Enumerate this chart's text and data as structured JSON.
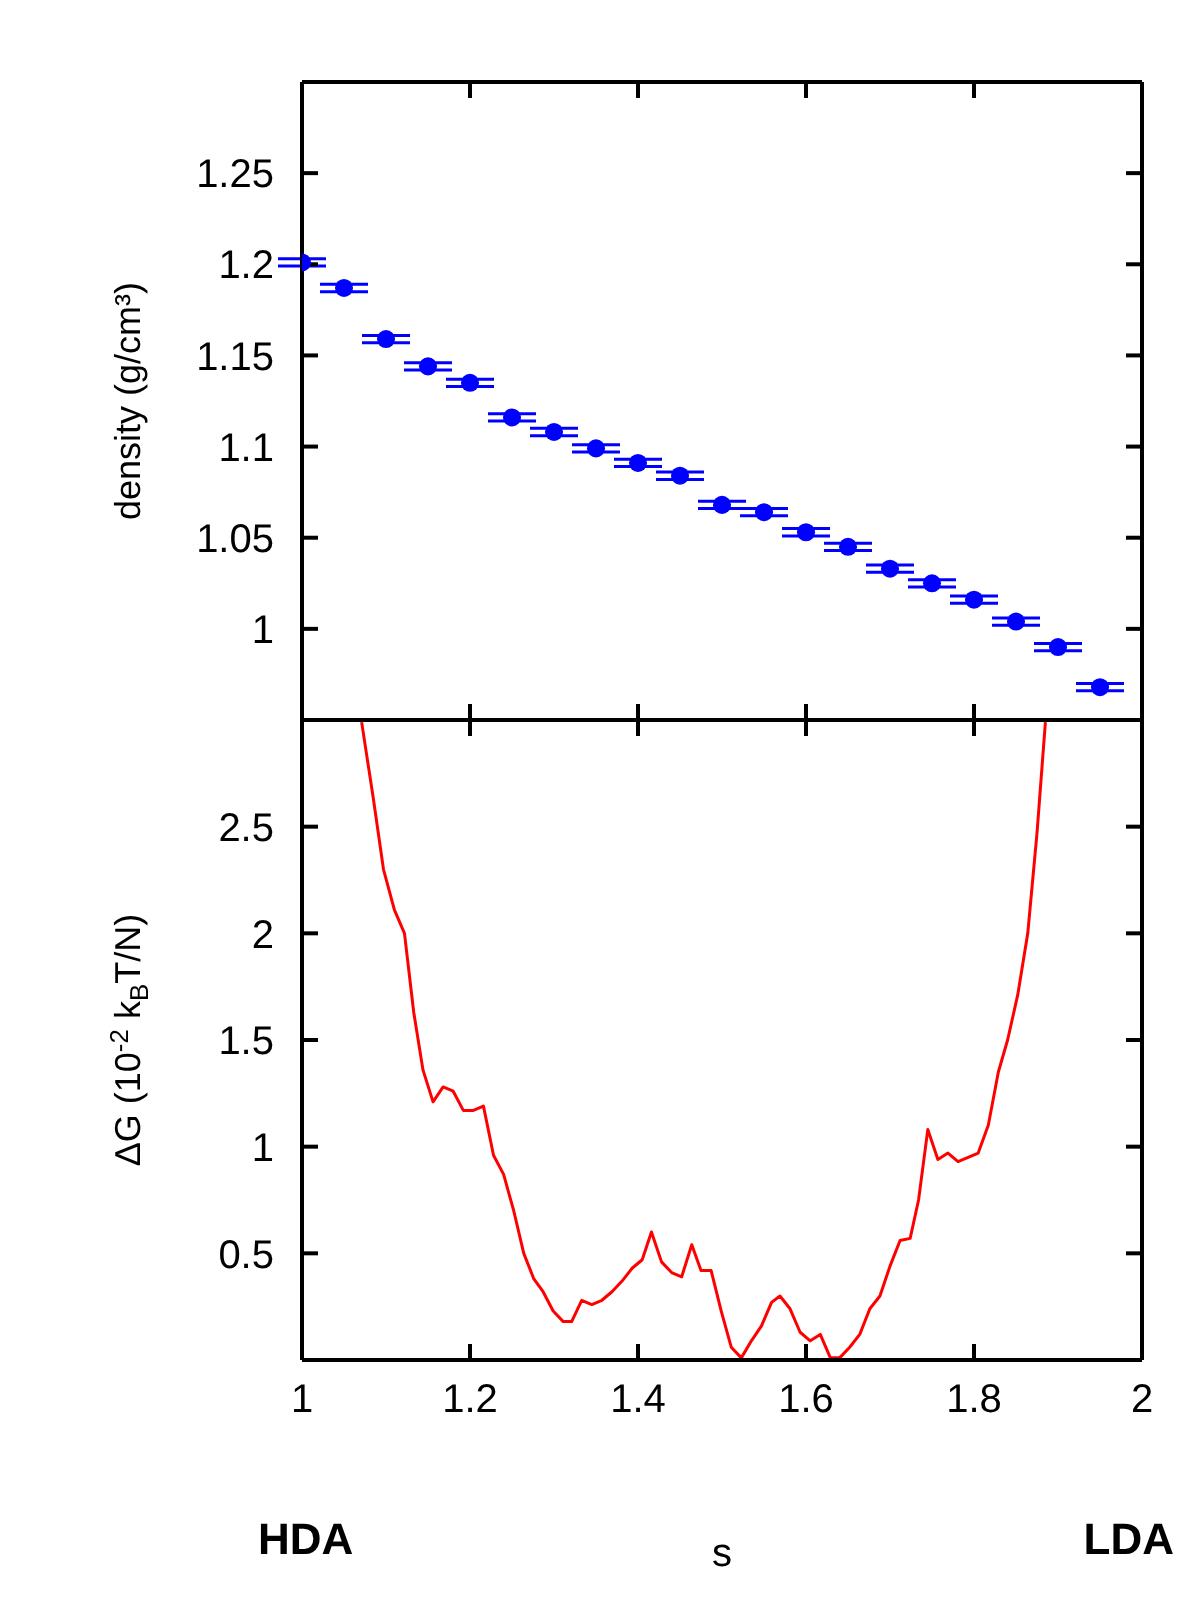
{
  "chart_data": [
    {
      "type": "scatter",
      "ylabel": "density (g/cm³)",
      "x": [
        1.0,
        1.05,
        1.1,
        1.15,
        1.2,
        1.25,
        1.3,
        1.35,
        1.4,
        1.45,
        1.5,
        1.55,
        1.6,
        1.65,
        1.7,
        1.75,
        1.8,
        1.85,
        1.9,
        1.95
      ],
      "series": [
        {
          "color": "#0000ff",
          "values": [
            1.201,
            1.187,
            1.159,
            1.144,
            1.135,
            1.116,
            1.108,
            1.099,
            1.091,
            1.084,
            1.068,
            1.064,
            1.053,
            1.045,
            1.033,
            1.025,
            1.016,
            1.004,
            0.99,
            0.968
          ],
          "errors": [
            0.002,
            0.002,
            0.002,
            0.002,
            0.002,
            0.002,
            0.002,
            0.002,
            0.002,
            0.002,
            0.002,
            0.002,
            0.002,
            0.002,
            0.002,
            0.002,
            0.002,
            0.002,
            0.002,
            0.002
          ]
        }
      ],
      "marker": "circle",
      "xlim": [
        1,
        2
      ],
      "xticks": [
        1,
        1.2,
        1.4,
        1.6,
        1.8,
        2
      ],
      "ylim": [
        0.95,
        1.3
      ],
      "yticks": [
        1,
        1.05,
        1.1,
        1.15,
        1.2,
        1.25
      ],
      "tick_labels": "y"
    },
    {
      "type": "line",
      "xlabel": "s",
      "ylabel": "ΔG (10$^{-2}$ k$_{B}$T/N)",
      "annotations": [
        "HDA",
        "LDA"
      ],
      "x": [
        1.071,
        1.085,
        1.097,
        1.11,
        1.122,
        1.133,
        1.144,
        1.156,
        1.168,
        1.18,
        1.192,
        1.204,
        1.216,
        1.228,
        1.24,
        1.252,
        1.264,
        1.276,
        1.287,
        1.299,
        1.311,
        1.321,
        1.333,
        1.345,
        1.357,
        1.369,
        1.381,
        1.393,
        1.405,
        1.416,
        1.428,
        1.44,
        1.452,
        1.464,
        1.475,
        1.487,
        1.499,
        1.511,
        1.523,
        1.535,
        1.547,
        1.559,
        1.569,
        1.581,
        1.593,
        1.605,
        1.617,
        1.629,
        1.64,
        1.652,
        1.664,
        1.676,
        1.688,
        1.7,
        1.712,
        1.724,
        1.734,
        1.745,
        1.757,
        1.769,
        1.781,
        1.805,
        1.817,
        1.829,
        1.84,
        1.852,
        1.864,
        1.875,
        1.885
      ],
      "series": [
        {
          "color": "#ff0000",
          "values": [
            2.99,
            2.63,
            2.3,
            2.11,
            2.0,
            1.63,
            1.36,
            1.21,
            1.28,
            1.26,
            1.17,
            1.17,
            1.19,
            0.96,
            0.87,
            0.7,
            0.5,
            0.38,
            0.32,
            0.23,
            0.18,
            0.18,
            0.28,
            0.26,
            0.28,
            0.32,
            0.37,
            0.43,
            0.47,
            0.6,
            0.46,
            0.41,
            0.39,
            0.54,
            0.42,
            0.42,
            0.23,
            0.06,
            0.01,
            0.09,
            0.16,
            0.27,
            0.3,
            0.24,
            0.13,
            0.09,
            0.12,
            0.01,
            0.01,
            0.06,
            0.12,
            0.24,
            0.3,
            0.44,
            0.56,
            0.57,
            0.75,
            1.08,
            0.94,
            0.97,
            0.93,
            0.97,
            1.1,
            1.35,
            1.5,
            1.71,
            2.0,
            2.47,
            2.99
          ]
        }
      ],
      "xlim": [
        1,
        2
      ],
      "xticks": [
        1,
        1.2,
        1.4,
        1.6,
        1.8,
        2
      ],
      "ylim": [
        0,
        3
      ],
      "yticks": [
        0.5,
        1,
        1.5,
        2,
        2.5
      ]
    }
  ]
}
